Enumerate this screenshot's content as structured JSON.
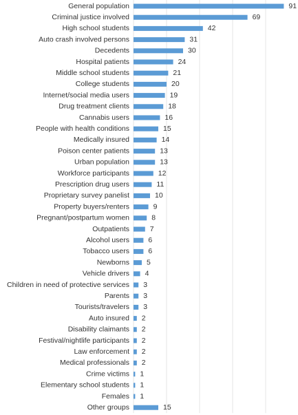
{
  "chart_data": {
    "type": "barh",
    "categories": [
      "General population",
      "Criminal justice involved",
      "High school students",
      "Auto crash involved persons",
      "Decedents",
      "Hospital patients",
      "Middle school students",
      "College students",
      "Internet/social media users",
      "Drug treatment clients",
      "Cannabis users",
      "People with health conditions",
      "Medically insured",
      "Poison center patients",
      "Urban population",
      "Workforce participants",
      "Prescription drug users",
      "Proprietary survey panelist",
      "Property buyers/renters",
      "Pregnant/postpartum women",
      "Outpatients",
      "Alcohol users",
      "Tobacco users",
      "Newborns",
      "Vehicle drivers",
      "Children in need of protective services",
      "Parents",
      "Tourists/travelers",
      "Auto insured",
      "Disability claimants",
      "Festival/nightlife participants",
      "Law enforcement",
      "Medical professionals",
      "Crime victims",
      "Elementary school students",
      "Females",
      "Other groups"
    ],
    "values": [
      91,
      69,
      42,
      31,
      30,
      24,
      21,
      20,
      19,
      18,
      16,
      15,
      14,
      13,
      13,
      12,
      11,
      10,
      9,
      8,
      7,
      6,
      6,
      5,
      4,
      3,
      3,
      3,
      2,
      2,
      2,
      2,
      2,
      1,
      1,
      1,
      15
    ],
    "color": "#5b9bd5",
    "xlim": [
      0,
      95
    ],
    "xticks": [
      0,
      20,
      40,
      60,
      80
    ],
    "grid": true
  }
}
